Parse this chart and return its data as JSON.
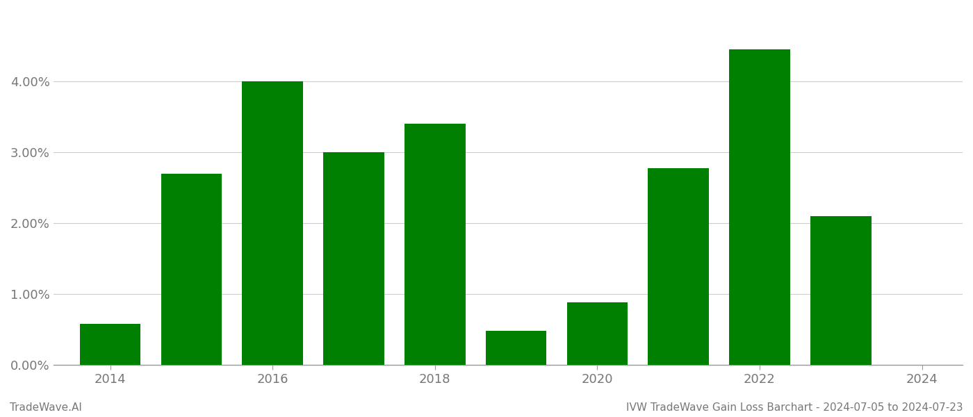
{
  "years": [
    2014,
    2015,
    2016,
    2017,
    2018,
    2019,
    2020,
    2021,
    2022,
    2023
  ],
  "values": [
    0.0058,
    0.027,
    0.04,
    0.03,
    0.034,
    0.0048,
    0.0088,
    0.0278,
    0.0445,
    0.021
  ],
  "bar_color": "#008000",
  "background_color": "#ffffff",
  "footer_left": "TradeWave.AI",
  "footer_right": "IVW TradeWave Gain Loss Barchart - 2024-07-05 to 2024-07-23",
  "ylim": [
    0,
    0.05
  ],
  "yticks": [
    0.0,
    0.01,
    0.02,
    0.03,
    0.04
  ],
  "grid_color": "#cccccc",
  "tick_label_color": "#777777",
  "footer_fontsize": 11,
  "bar_width": 0.75,
  "xticks": [
    2014,
    2016,
    2018,
    2020,
    2022,
    2024
  ],
  "xlim": [
    2013.3,
    2024.5
  ]
}
